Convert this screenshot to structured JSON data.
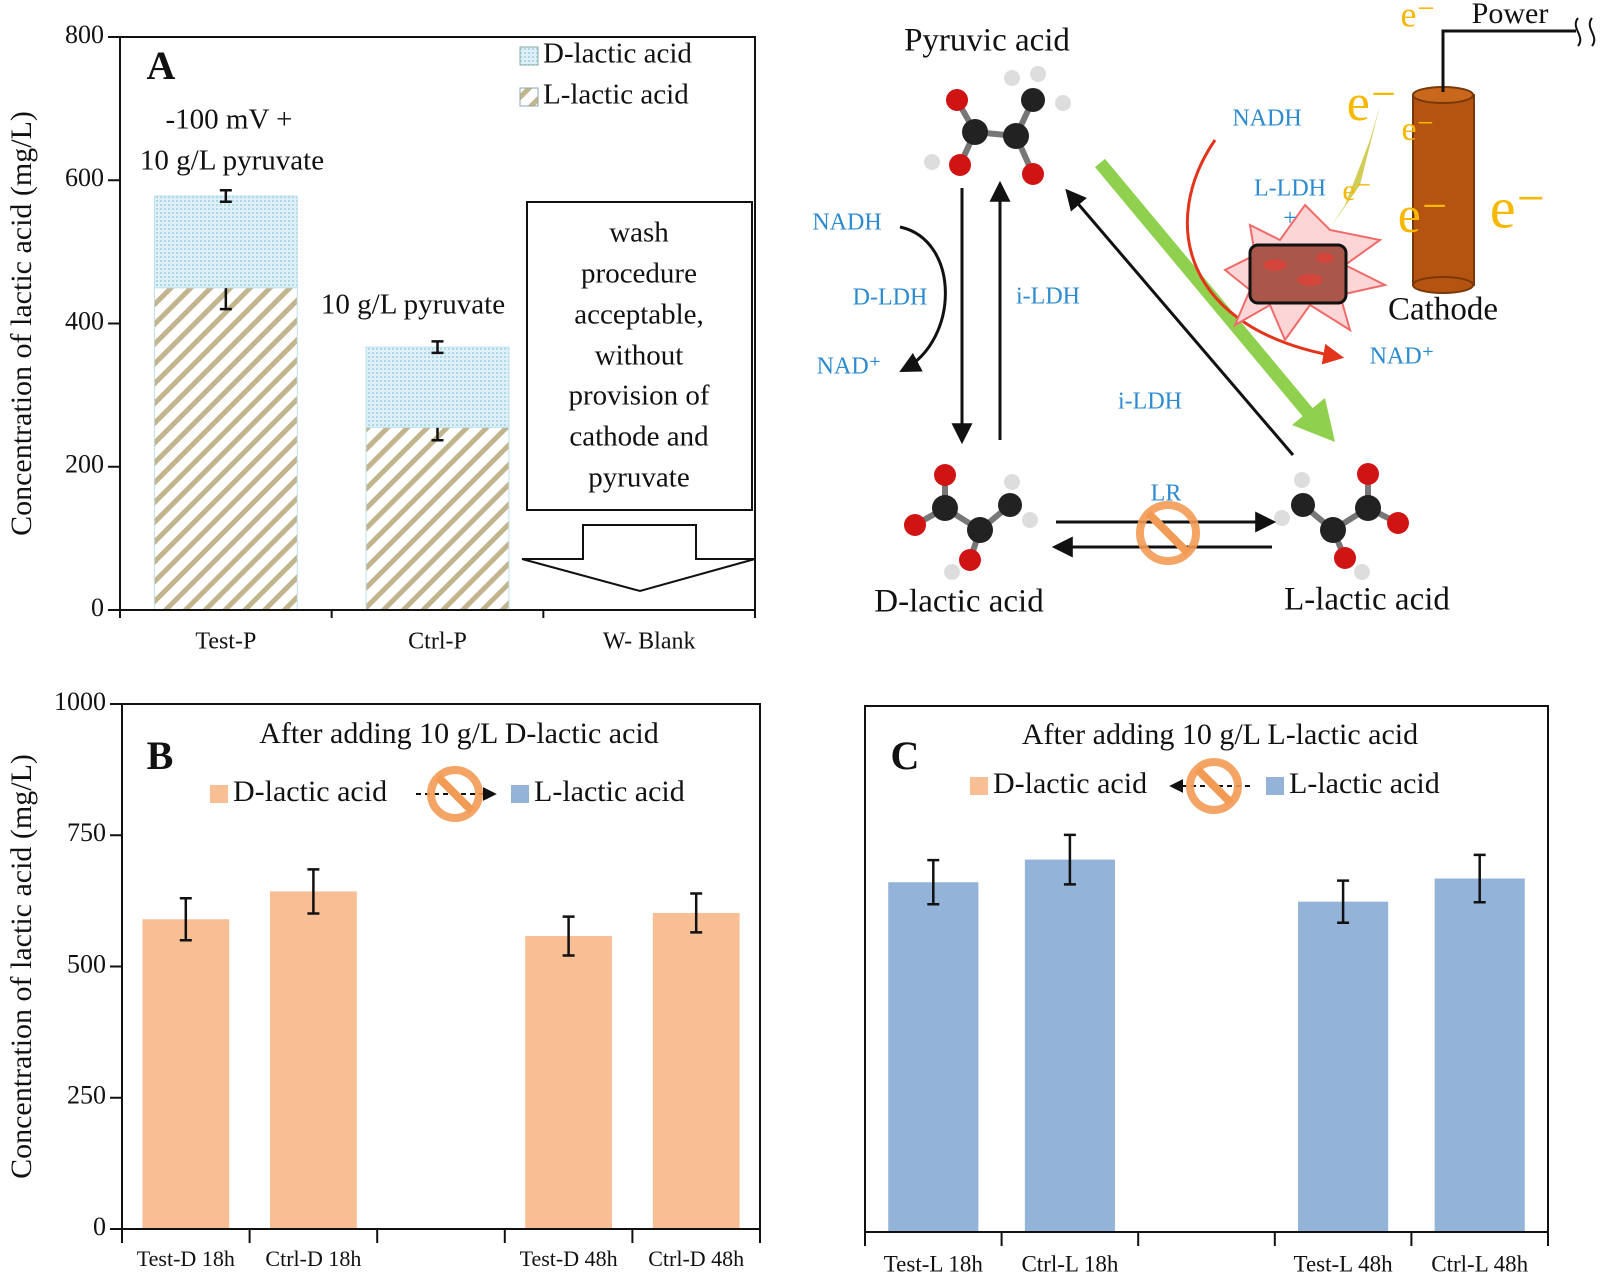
{
  "chart_data": [
    {
      "type": "bar",
      "stacked": true,
      "panel": "A",
      "ylabel": "Concentration of lactic acid (mg/L)",
      "categories": [
        "Test-P",
        "Ctrl-P",
        "W- Blank"
      ],
      "series": [
        {
          "name": "L-lactic acid",
          "color": "#c2b48c",
          "pattern": "hatch",
          "values": [
            450,
            255,
            0
          ],
          "errors": [
            30,
            18,
            null
          ]
        },
        {
          "name": "D-lactic acid",
          "color": "#a9d8e8",
          "pattern": "dots",
          "values": [
            128,
            112,
            0
          ],
          "errors": [
            8,
            8,
            null
          ]
        }
      ],
      "ylim": [
        0,
        800
      ],
      "yticks": [
        0,
        200,
        400,
        600,
        800
      ],
      "annotations": [
        "-100 mV +",
        "10 g/L pyruvate",
        "10 g/L pyruvate"
      ],
      "box_text": [
        "wash",
        "procedure",
        "acceptable,",
        "without",
        "provision of",
        "cathode and",
        "pyruvate"
      ]
    },
    {
      "type": "bar",
      "panel": "B",
      "title": "After adding 10 g/L D-lactic acid",
      "ylabel": "Concentration of lactic acid (mg/L)",
      "categories": [
        "Test-D 18h",
        "Ctrl-D 18h",
        null,
        "Test-D 48h",
        "Ctrl-D 48h"
      ],
      "series": [
        {
          "name": "D-lactic acid",
          "color": "#f8be94",
          "values": [
            590,
            643,
            null,
            558,
            602
          ],
          "errors": [
            40,
            42,
            null,
            37,
            37
          ]
        },
        {
          "name": "L-lactic acid",
          "color": "#94b3d9",
          "values": [
            null,
            null,
            null,
            null,
            null
          ]
        }
      ],
      "ylim": [
        0,
        1000
      ],
      "yticks": [
        0,
        250,
        500,
        750,
        1000
      ]
    },
    {
      "type": "bar",
      "panel": "C",
      "title": "After adding 10 g/L L-lactic acid",
      "categories": [
        "Test-L 18h",
        "Ctrl-L 18h",
        null,
        "Test-L 48h",
        "Ctrl-L 48h"
      ],
      "series": [
        {
          "name": "D-lactic acid",
          "color": "#f8be94",
          "values": [
            null,
            null,
            null,
            null,
            null
          ]
        },
        {
          "name": "L-lactic acid",
          "color": "#94b3d9",
          "values": [
            665,
            708,
            null,
            628,
            672
          ],
          "errors": [
            42,
            47,
            null,
            40,
            45
          ]
        }
      ],
      "ylim": [
        0,
        1000
      ]
    }
  ],
  "diagram": {
    "pyruvic": "Pyruvic acid",
    "d_lactic": "D-lactic acid",
    "l_lactic": "L-lactic acid",
    "nadh_left": "NADH",
    "d_ldh": "D-LDH",
    "nad_left": "NAD⁺",
    "i_ldh_1": "i-LDH",
    "i_ldh_2": "i-LDH",
    "nadh_right": "NADH",
    "l_ldh": "L-LDH",
    "plus": "+",
    "nad_right": "NAD⁺",
    "lr": "LR",
    "cathode": "Cathode",
    "power": "Power",
    "electrons": [
      "e⁻",
      "e⁻",
      "e⁻",
      "e⁻",
      "e⁻",
      "e⁻"
    ]
  }
}
